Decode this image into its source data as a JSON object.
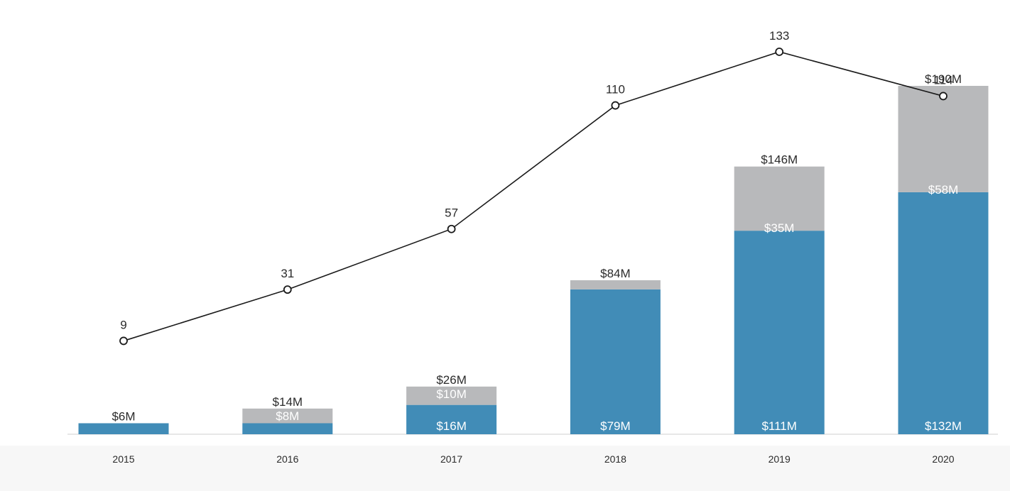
{
  "chart_data": {
    "type": "bar",
    "categories": [
      "2015",
      "2016",
      "2017",
      "2018",
      "2019",
      "2020"
    ],
    "series": [
      {
        "type": "bar",
        "stack": "total",
        "color": "#418cb7",
        "values": [
          6,
          6,
          16,
          79,
          111,
          132
        ],
        "labels": [
          "",
          "",
          "$16M",
          "$79M",
          "$111M",
          "$132M"
        ]
      },
      {
        "type": "bar",
        "stack": "total",
        "color": "#b8b9bb",
        "values": [
          0,
          8,
          10,
          5,
          35,
          58
        ],
        "labels": [
          "",
          "$8M",
          "$10M",
          "",
          "$35M",
          "$58M"
        ]
      },
      {
        "type": "line",
        "color": "#1a1a1a",
        "values": [
          9,
          31,
          57,
          110,
          133,
          114
        ],
        "labels": [
          "9",
          "31",
          "57",
          "110",
          "133",
          "114"
        ]
      }
    ],
    "totals": [
      6,
      14,
      26,
      84,
      146,
      190
    ],
    "total_labels": [
      "$6M",
      "$14M",
      "$26M",
      "$84M",
      "$146M",
      "$190M"
    ],
    "title": "",
    "xlabel": "",
    "ylabel": "",
    "bar_ylim": [
      0,
      200
    ],
    "line_ylim": [
      0,
      140
    ],
    "grid": false,
    "legend": "none"
  }
}
